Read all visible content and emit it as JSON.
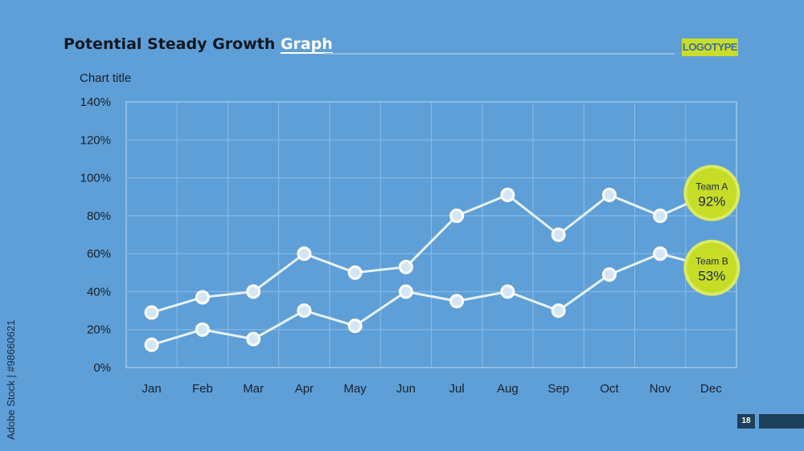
{
  "slide": {
    "title_main": "Potential Steady Growth ",
    "title_highlight": "Graph",
    "logo": "LOGOTYPE",
    "page_number": "18",
    "watermark": "Adobe Stock | #98660621"
  },
  "chart_data": {
    "type": "line",
    "title": "Chart title",
    "categories": [
      "Jan",
      "Feb",
      "Mar",
      "Apr",
      "May",
      "Jun",
      "Jul",
      "Aug",
      "Sep",
      "Oct",
      "Nov",
      "Dec"
    ],
    "series": [
      {
        "name": "Team A",
        "values": [
          29,
          37,
          40,
          60,
          50,
          53,
          80,
          91,
          70,
          91,
          80,
          92
        ],
        "label": "92%"
      },
      {
        "name": "Team B",
        "values": [
          12,
          20,
          15,
          30,
          22,
          40,
          35,
          40,
          30,
          49,
          60,
          53
        ],
        "label": "53%"
      }
    ],
    "ylim": [
      0,
      140
    ],
    "yticks": [
      "0%",
      "20%",
      "40%",
      "60%",
      "80%",
      "100%",
      "120%",
      "140%"
    ],
    "grid": true,
    "colors": {
      "line": "#e6f1fb",
      "marker_fill": "#d3e6f7",
      "grid": "#8cbde8",
      "callout": "#c6dc27",
      "callout_ring": "#dbea62"
    }
  }
}
